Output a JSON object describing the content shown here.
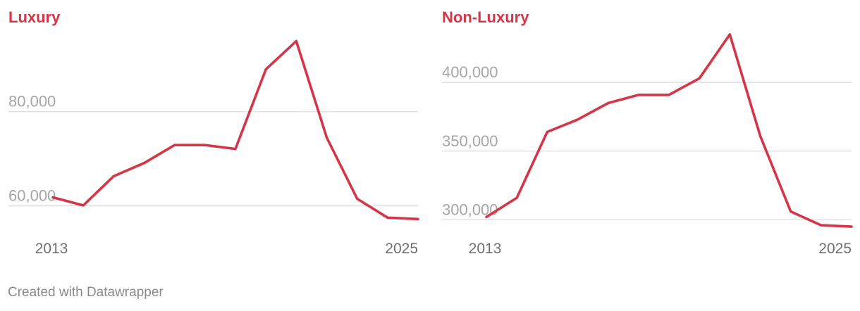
{
  "chart_data": [
    {
      "type": "line",
      "title": "Luxury",
      "x": [
        2013,
        2014,
        2015,
        2016,
        2017,
        2018,
        2019,
        2020,
        2021,
        2022,
        2023,
        2024,
        2025
      ],
      "series": [
        {
          "values": [
            61800,
            60100,
            66300,
            69100,
            72900,
            72900,
            72100,
            89000,
            95000,
            74500,
            61500,
            57500,
            57200
          ]
        }
      ],
      "y_ticks": [
        60000,
        80000
      ],
      "y_tick_labels": [
        "60,000",
        "80,000"
      ],
      "x_tick_labels": [
        "2013",
        "2025"
      ],
      "ylim": [
        55000,
        97000
      ],
      "grid": true,
      "color": "#d63547"
    },
    {
      "type": "line",
      "title": "Non-Luxury",
      "x": [
        2013,
        2014,
        2015,
        2016,
        2017,
        2018,
        2019,
        2020,
        2021,
        2022,
        2023,
        2024,
        2025
      ],
      "series": [
        {
          "values": [
            302000,
            316000,
            364000,
            373000,
            385000,
            391000,
            391000,
            403000,
            435000,
            361000,
            306000,
            296000,
            295000
          ]
        }
      ],
      "y_ticks": [
        300000,
        350000,
        400000
      ],
      "y_tick_labels": [
        "300,000",
        "350,000",
        "400,000"
      ],
      "x_tick_labels": [
        "2013",
        "2025"
      ],
      "ylim": [
        293000,
        437000
      ],
      "grid": true,
      "color": "#d63547"
    }
  ],
  "credit": "Created with Datawrapper"
}
